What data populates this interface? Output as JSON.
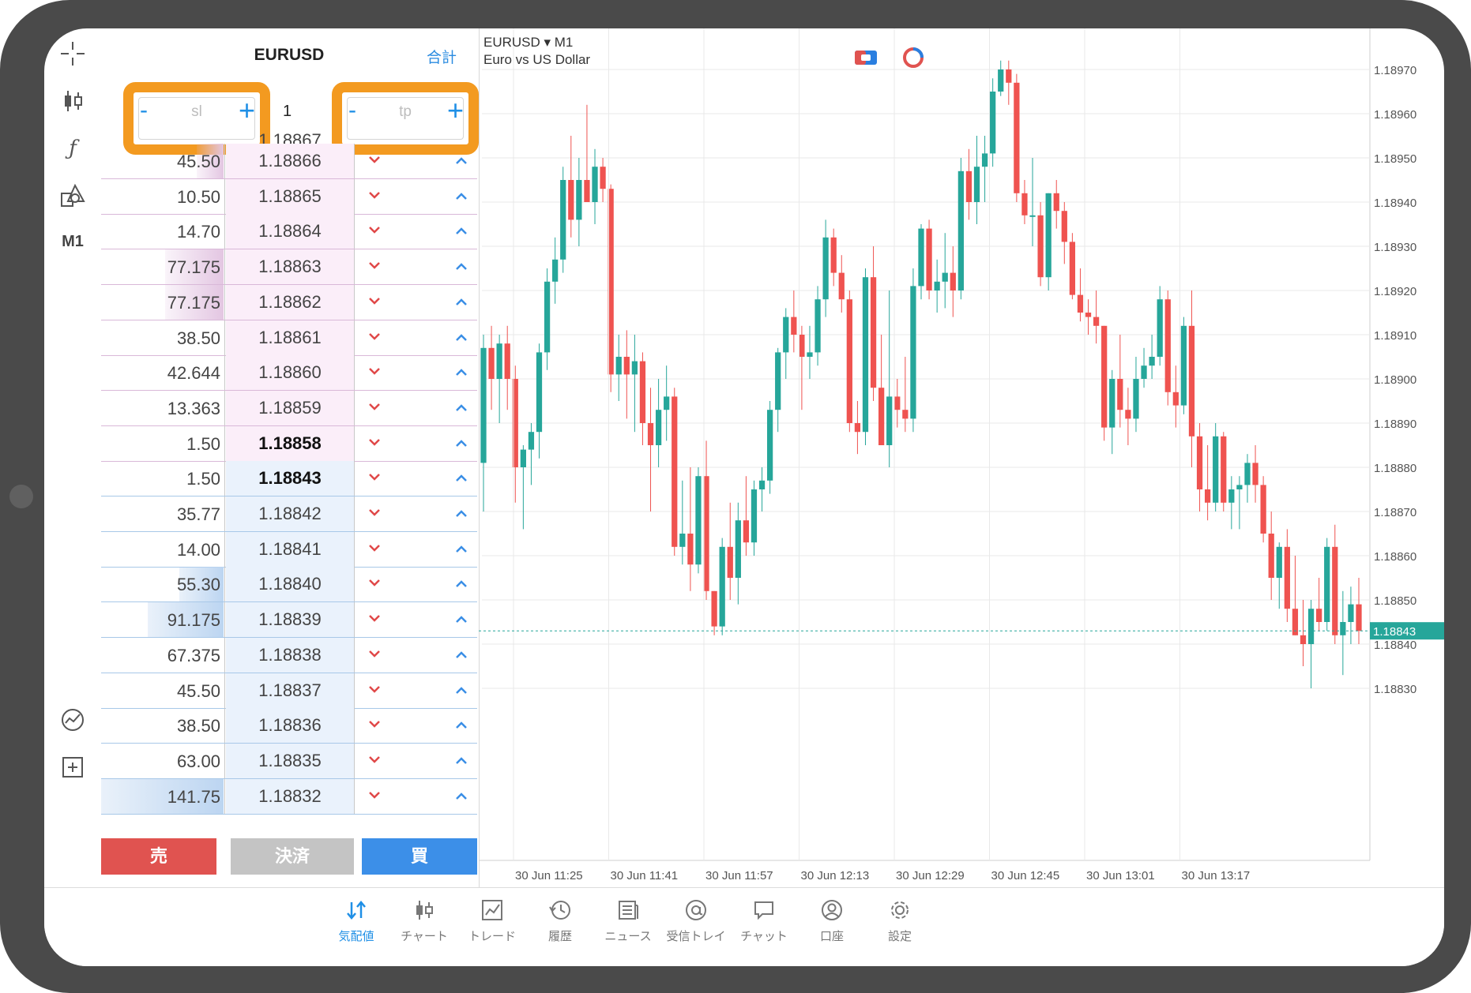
{
  "dom": {
    "symbol": "EURUSD",
    "total_label": "合計",
    "sl": {
      "minus": "-",
      "placeholder": "sl",
      "plus": "+"
    },
    "tp": {
      "minus": "-",
      "placeholder": "tp",
      "plus": "+"
    },
    "volume": "1",
    "top_price": "1.18867",
    "rows": [
      {
        "vol": "45.50",
        "price": "1.18866",
        "side": "ask",
        "fill": 0.22
      },
      {
        "vol": "10.50",
        "price": "1.18865",
        "side": "ask",
        "fill": 0.0
      },
      {
        "vol": "14.70",
        "price": "1.18864",
        "side": "ask",
        "fill": 0.0
      },
      {
        "vol": "77.175",
        "price": "1.18863",
        "side": "ask",
        "fill": 0.48
      },
      {
        "vol": "77.175",
        "price": "1.18862",
        "side": "ask",
        "fill": 0.48
      },
      {
        "vol": "38.50",
        "price": "1.18861",
        "side": "ask",
        "fill": 0.0
      },
      {
        "vol": "42.644",
        "price": "1.18860",
        "side": "ask",
        "fill": 0.0
      },
      {
        "vol": "13.363",
        "price": "1.18859",
        "side": "ask",
        "fill": 0.0
      },
      {
        "vol": "1.50",
        "price": "1.18858",
        "side": "ask",
        "fill": 0.0,
        "bold": true
      },
      {
        "vol": "1.50",
        "price": "1.18843",
        "side": "bid",
        "fill": 0.0,
        "bold": true
      },
      {
        "vol": "35.77",
        "price": "1.18842",
        "side": "bid",
        "fill": 0.0
      },
      {
        "vol": "14.00",
        "price": "1.18841",
        "side": "bid",
        "fill": 0.0
      },
      {
        "vol": "55.30",
        "price": "1.18840",
        "side": "bid",
        "fill": 0.36
      },
      {
        "vol": "91.175",
        "price": "1.18839",
        "side": "bid",
        "fill": 0.62
      },
      {
        "vol": "67.375",
        "price": "1.18838",
        "side": "bid",
        "fill": 0.0
      },
      {
        "vol": "45.50",
        "price": "1.18837",
        "side": "bid",
        "fill": 0.0
      },
      {
        "vol": "38.50",
        "price": "1.18836",
        "side": "bid",
        "fill": 0.0
      },
      {
        "vol": "63.00",
        "price": "1.18835",
        "side": "bid",
        "fill": 0.0
      },
      {
        "vol": "141.75",
        "price": "1.18832",
        "side": "bid",
        "fill": 1.0
      }
    ],
    "sell_label": "売",
    "close_label": "決済",
    "buy_label": "買",
    "sell_arrow": "⌄",
    "buy_arrow": "⌃"
  },
  "toolbar": {
    "timeframe": "M1"
  },
  "chart": {
    "symbol_line": "EURUSD ▾ M1",
    "description": "Euro vs US Dollar",
    "current_price": "1.18843",
    "price_ticks": [
      "1.18970",
      "1.18960",
      "1.18950",
      "1.18940",
      "1.18930",
      "1.18920",
      "1.18910",
      "1.18900",
      "1.18890",
      "1.18880",
      "1.18870",
      "1.18860",
      "1.18850",
      "1.18840",
      "1.18830"
    ],
    "time_ticks": [
      "30 Jun 11:25",
      "30 Jun 11:41",
      "30 Jun 11:57",
      "30 Jun 12:13",
      "30 Jun 12:29",
      "30 Jun 12:45",
      "30 Jun 13:01",
      "30 Jun 13:17"
    ],
    "colors": {
      "up": "#26a69a",
      "down": "#ef5350",
      "grid": "#e9e9e9"
    }
  },
  "chart_data": {
    "type": "candlestick",
    "symbol": "EURUSD",
    "timeframe": "M1",
    "ylim": [
      1.18825,
      1.18978
    ],
    "x_ticks": [
      "30 Jun 11:25",
      "30 Jun 11:41",
      "30 Jun 11:57",
      "30 Jun 12:13",
      "30 Jun 12:29",
      "30 Jun 12:45",
      "30 Jun 13:01",
      "30 Jun 13:17"
    ],
    "current_price": 1.18843,
    "ohlc": [
      [
        1.18881,
        1.1891,
        1.1887,
        1.18907
      ],
      [
        1.18907,
        1.18912,
        1.18893,
        1.189
      ],
      [
        1.189,
        1.1891,
        1.1889,
        1.18908
      ],
      [
        1.18908,
        1.18912,
        1.18893,
        1.189
      ],
      [
        1.189,
        1.18903,
        1.18872,
        1.1888
      ],
      [
        1.1888,
        1.18885,
        1.18866,
        1.18884
      ],
      [
        1.18884,
        1.1889,
        1.18876,
        1.18888
      ],
      [
        1.18888,
        1.18908,
        1.18882,
        1.18906
      ],
      [
        1.18906,
        1.18925,
        1.18902,
        1.18922
      ],
      [
        1.18922,
        1.18932,
        1.18917,
        1.18927
      ],
      [
        1.18927,
        1.18948,
        1.18924,
        1.18945
      ],
      [
        1.18945,
        1.18955,
        1.18932,
        1.18936
      ],
      [
        1.18936,
        1.1895,
        1.1893,
        1.18945
      ],
      [
        1.18945,
        1.18962,
        1.1894,
        1.1894
      ],
      [
        1.1894,
        1.18952,
        1.18935,
        1.18948
      ],
      [
        1.18948,
        1.1895,
        1.1894,
        1.18943
      ],
      [
        1.18943,
        1.18944,
        1.18897,
        1.18901
      ],
      [
        1.18901,
        1.1891,
        1.18895,
        1.18905
      ],
      [
        1.18905,
        1.18911,
        1.18891,
        1.18901
      ],
      [
        1.18901,
        1.1891,
        1.18888,
        1.18904
      ],
      [
        1.18904,
        1.18906,
        1.18885,
        1.1889
      ],
      [
        1.1889,
        1.18898,
        1.1887,
        1.18885
      ],
      [
        1.18885,
        1.189,
        1.1888,
        1.18893
      ],
      [
        1.18893,
        1.18903,
        1.18886,
        1.18896
      ],
      [
        1.18896,
        1.18898,
        1.1886,
        1.18862
      ],
      [
        1.18862,
        1.18877,
        1.18858,
        1.18865
      ],
      [
        1.18865,
        1.1888,
        1.18852,
        1.18858
      ],
      [
        1.18858,
        1.1888,
        1.18856,
        1.18878
      ],
      [
        1.18878,
        1.18886,
        1.1885,
        1.18852
      ],
      [
        1.18852,
        1.18852,
        1.18842,
        1.18844
      ],
      [
        1.18844,
        1.18864,
        1.18842,
        1.18862
      ],
      [
        1.18862,
        1.18872,
        1.1885,
        1.18855
      ],
      [
        1.18855,
        1.18872,
        1.18849,
        1.18868
      ],
      [
        1.18868,
        1.18878,
        1.1886,
        1.18863
      ],
      [
        1.18863,
        1.18877,
        1.1886,
        1.18875
      ],
      [
        1.18875,
        1.1888,
        1.1887,
        1.18877
      ],
      [
        1.18877,
        1.18895,
        1.18874,
        1.18893
      ],
      [
        1.18893,
        1.18907,
        1.18888,
        1.18906
      ],
      [
        1.18906,
        1.18916,
        1.189,
        1.18914
      ],
      [
        1.18914,
        1.1892,
        1.18906,
        1.1891
      ],
      [
        1.1891,
        1.18912,
        1.18893,
        1.18905
      ],
      [
        1.18905,
        1.18912,
        1.189,
        1.18906
      ],
      [
        1.18906,
        1.18921,
        1.18903,
        1.18918
      ],
      [
        1.18918,
        1.18936,
        1.18914,
        1.18932
      ],
      [
        1.18932,
        1.18934,
        1.18921,
        1.18924
      ],
      [
        1.18924,
        1.18928,
        1.18915,
        1.18918
      ],
      [
        1.18918,
        1.1892,
        1.18888,
        1.1889
      ],
      [
        1.1889,
        1.18895,
        1.18883,
        1.18888
      ],
      [
        1.18888,
        1.18925,
        1.18885,
        1.18923
      ],
      [
        1.18923,
        1.1893,
        1.18895,
        1.18898
      ],
      [
        1.18898,
        1.1891,
        1.18885,
        1.18885
      ],
      [
        1.18885,
        1.1892,
        1.1888,
        1.18896
      ],
      [
        1.18896,
        1.189,
        1.18889,
        1.18893
      ],
      [
        1.18893,
        1.18905,
        1.18888,
        1.18891
      ],
      [
        1.18891,
        1.18925,
        1.18888,
        1.18921
      ],
      [
        1.18921,
        1.18935,
        1.18918,
        1.18934
      ],
      [
        1.18934,
        1.18936,
        1.18918,
        1.1892
      ],
      [
        1.1892,
        1.18927,
        1.18915,
        1.18922
      ],
      [
        1.18922,
        1.18933,
        1.18916,
        1.18924
      ],
      [
        1.18924,
        1.1893,
        1.18914,
        1.1892
      ],
      [
        1.1892,
        1.1895,
        1.18918,
        1.18947
      ],
      [
        1.18947,
        1.18952,
        1.18936,
        1.1894
      ],
      [
        1.1894,
        1.18955,
        1.18935,
        1.18948
      ],
      [
        1.18948,
        1.18955,
        1.1894,
        1.18951
      ],
      [
        1.18951,
        1.18968,
        1.18948,
        1.18965
      ],
      [
        1.18965,
        1.18972,
        1.18964,
        1.1897
      ],
      [
        1.1897,
        1.18972,
        1.18962,
        1.18967
      ],
      [
        1.18967,
        1.18969,
        1.1894,
        1.18942
      ],
      [
        1.18942,
        1.18945,
        1.18935,
        1.18937
      ],
      [
        1.18937,
        1.1895,
        1.1893,
        1.18937
      ],
      [
        1.18937,
        1.1894,
        1.18921,
        1.18923
      ],
      [
        1.18923,
        1.18942,
        1.1892,
        1.18942
      ],
      [
        1.18942,
        1.18945,
        1.18934,
        1.18938
      ],
      [
        1.18938,
        1.1894,
        1.18926,
        1.18931
      ],
      [
        1.18931,
        1.18933,
        1.18918,
        1.18919
      ],
      [
        1.18919,
        1.18925,
        1.18913,
        1.18915
      ],
      [
        1.18915,
        1.18918,
        1.1891,
        1.18914
      ],
      [
        1.18914,
        1.1892,
        1.18908,
        1.18912
      ],
      [
        1.18912,
        1.18912,
        1.18886,
        1.18889
      ],
      [
        1.18889,
        1.18902,
        1.18883,
        1.189
      ],
      [
        1.189,
        1.1891,
        1.18889,
        1.18893
      ],
      [
        1.18893,
        1.18898,
        1.18885,
        1.18891
      ],
      [
        1.18891,
        1.18905,
        1.18888,
        1.189
      ],
      [
        1.189,
        1.18907,
        1.18898,
        1.18903
      ],
      [
        1.18903,
        1.1891,
        1.189,
        1.18905
      ],
      [
        1.18905,
        1.18921,
        1.18903,
        1.18918
      ],
      [
        1.18918,
        1.1892,
        1.18894,
        1.18897
      ],
      [
        1.18897,
        1.18903,
        1.18889,
        1.18894
      ],
      [
        1.18894,
        1.18914,
        1.18892,
        1.18912
      ],
      [
        1.18912,
        1.1892,
        1.1888,
        1.18887
      ],
      [
        1.18887,
        1.1889,
        1.1887,
        1.18875
      ],
      [
        1.18875,
        1.18885,
        1.18868,
        1.18872
      ],
      [
        1.18872,
        1.1889,
        1.1887,
        1.18887
      ],
      [
        1.18887,
        1.18888,
        1.1887,
        1.18872
      ],
      [
        1.18872,
        1.18878,
        1.18866,
        1.18875
      ],
      [
        1.18875,
        1.18878,
        1.18866,
        1.18876
      ],
      [
        1.18876,
        1.18883,
        1.18872,
        1.18881
      ],
      [
        1.18881,
        1.18885,
        1.18872,
        1.18876
      ],
      [
        1.18876,
        1.18878,
        1.18863,
        1.18865
      ],
      [
        1.18865,
        1.1887,
        1.1885,
        1.18855
      ],
      [
        1.18855,
        1.18863,
        1.18848,
        1.18862
      ],
      [
        1.18862,
        1.18866,
        1.18845,
        1.18848
      ],
      [
        1.18848,
        1.1886,
        1.18842,
        1.18842
      ],
      [
        1.18842,
        1.1885,
        1.18835,
        1.1884
      ],
      [
        1.1884,
        1.1885,
        1.1883,
        1.18848
      ],
      [
        1.18848,
        1.18855,
        1.18843,
        1.18845
      ],
      [
        1.18845,
        1.18864,
        1.18843,
        1.18862
      ],
      [
        1.18862,
        1.18867,
        1.1884,
        1.18842
      ],
      [
        1.18842,
        1.18852,
        1.18833,
        1.18845
      ],
      [
        1.18845,
        1.18853,
        1.1884,
        1.18849
      ],
      [
        1.18849,
        1.18855,
        1.1884,
        1.18843
      ]
    ]
  },
  "nav": {
    "items": [
      {
        "label": "気配値",
        "icon": "quotes-icon",
        "active": true
      },
      {
        "label": "チャート",
        "icon": "chart-icon"
      },
      {
        "label": "トレード",
        "icon": "trade-icon"
      },
      {
        "label": "履歴",
        "icon": "history-icon"
      },
      {
        "label": "ニュース",
        "icon": "news-icon"
      },
      {
        "label": "受信トレイ",
        "icon": "mail-icon"
      },
      {
        "label": "チャット",
        "icon": "chat-icon"
      },
      {
        "label": "口座",
        "icon": "account-icon"
      },
      {
        "label": "設定",
        "icon": "settings-icon"
      }
    ]
  }
}
